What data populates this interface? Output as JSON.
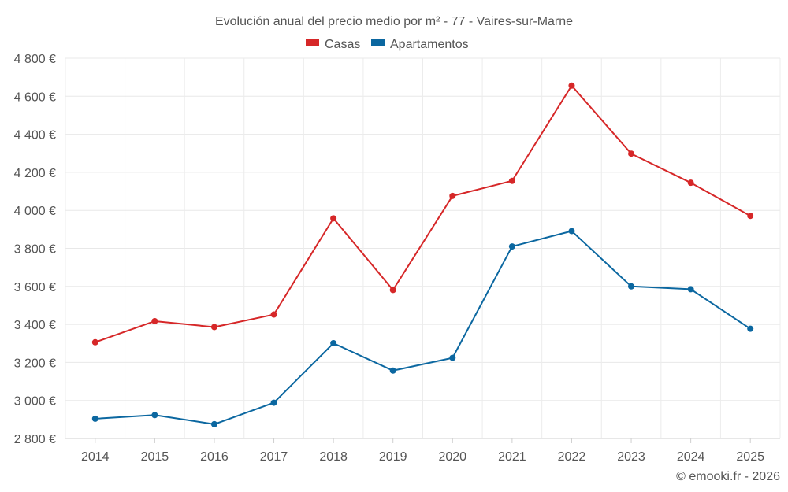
{
  "chart_data": {
    "type": "line",
    "title": "Evolución anual del precio medio por m² - 77 - Vaires-sur-Marne",
    "xlabel": "",
    "ylabel": "",
    "categories": [
      "2014",
      "2015",
      "2016",
      "2017",
      "2018",
      "2019",
      "2020",
      "2021",
      "2022",
      "2023",
      "2024",
      "2025"
    ],
    "series": [
      {
        "name": "Casas",
        "color": "#d62728",
        "values": [
          3306,
          3417,
          3386,
          3452,
          3958,
          3581,
          4076,
          4155,
          4656,
          4298,
          4145,
          3971
        ]
      },
      {
        "name": "Apartamentos",
        "color": "#0b67a0",
        "values": [
          2904,
          2923,
          2875,
          2988,
          3301,
          3157,
          3224,
          3810,
          3891,
          3600,
          3585,
          3377
        ]
      }
    ],
    "ylim": [
      2800,
      4800
    ],
    "yticks": [
      "2 800 €",
      "3 000 €",
      "3 200 €",
      "3 400 €",
      "3 600 €",
      "3 800 €",
      "4 000 €",
      "4 200 €",
      "4 400 €",
      "4 600 €",
      "4 800 €"
    ],
    "ytick_values": [
      2800,
      3000,
      3200,
      3400,
      3600,
      3800,
      4000,
      4200,
      4400,
      4600,
      4800
    ],
    "grid": true,
    "legend_position": "top-center",
    "footer": "© emooki.fr - 2026"
  }
}
